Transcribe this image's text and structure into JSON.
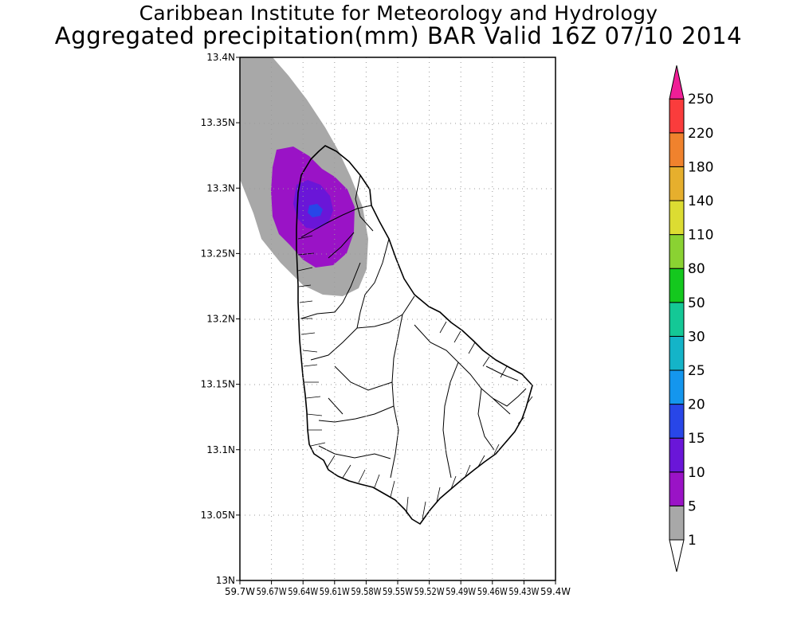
{
  "titles": {
    "line1": "Caribbean Institute for Meteorology and Hydrology",
    "line2": "Aggregated precipitation(mm) BAR Valid 16Z 07/10 2014"
  },
  "map": {
    "lon_range": [
      -59.7,
      -59.4
    ],
    "lat_range": [
      13.0,
      13.4
    ],
    "lat_ticks": [
      {
        "value": 13.4,
        "label": "13.4N"
      },
      {
        "value": 13.35,
        "label": "13.35N"
      },
      {
        "value": 13.3,
        "label": "13.3N"
      },
      {
        "value": 13.25,
        "label": "13.25N"
      },
      {
        "value": 13.2,
        "label": "13.2N"
      },
      {
        "value": 13.15,
        "label": "13.15N"
      },
      {
        "value": 13.1,
        "label": "13.1N"
      },
      {
        "value": 13.05,
        "label": "13.05N"
      },
      {
        "value": 13.0,
        "label": "13N"
      }
    ],
    "lon_ticks": [
      {
        "value": -59.7,
        "label": "59.7W"
      },
      {
        "value": -59.67,
        "label": "59.67W"
      },
      {
        "value": -59.64,
        "label": "59.64W"
      },
      {
        "value": -59.61,
        "label": "59.61W"
      },
      {
        "value": -59.58,
        "label": "59.58W"
      },
      {
        "value": -59.55,
        "label": "59.55W"
      },
      {
        "value": -59.52,
        "label": "59.52W"
      },
      {
        "value": -59.49,
        "label": "59.49W"
      },
      {
        "value": -59.46,
        "label": "59.46W"
      },
      {
        "value": -59.43,
        "label": "59.43W"
      },
      {
        "value": -59.4,
        "label": "59.4W"
      }
    ],
    "grid": "dotted",
    "region": "Barbados"
  },
  "colorbar": {
    "levels": [
      "1",
      "5",
      "10",
      "15",
      "20",
      "25",
      "30",
      "50",
      "80",
      "110",
      "140",
      "180",
      "220",
      "250"
    ],
    "colors": [
      "#a8a8a8",
      "#9a13c6",
      "#6a16d8",
      "#2846e8",
      "#1496ee",
      "#14b4c8",
      "#14c896",
      "#14c81e",
      "#8ad232",
      "#dcdc32",
      "#e6af2d",
      "#f0822d",
      "#fa3c3c",
      "#f01e96"
    ],
    "over_color": "#f01e96",
    "under_color": "#ffffff"
  },
  "colors": {
    "precip_1_5": "#a8a8a8",
    "precip_5_10": "#9a13c6",
    "precip_10_15": "#6a16d8",
    "precip_15_20": "#2846e8",
    "coast": "#000000",
    "land": "#ffffff"
  }
}
